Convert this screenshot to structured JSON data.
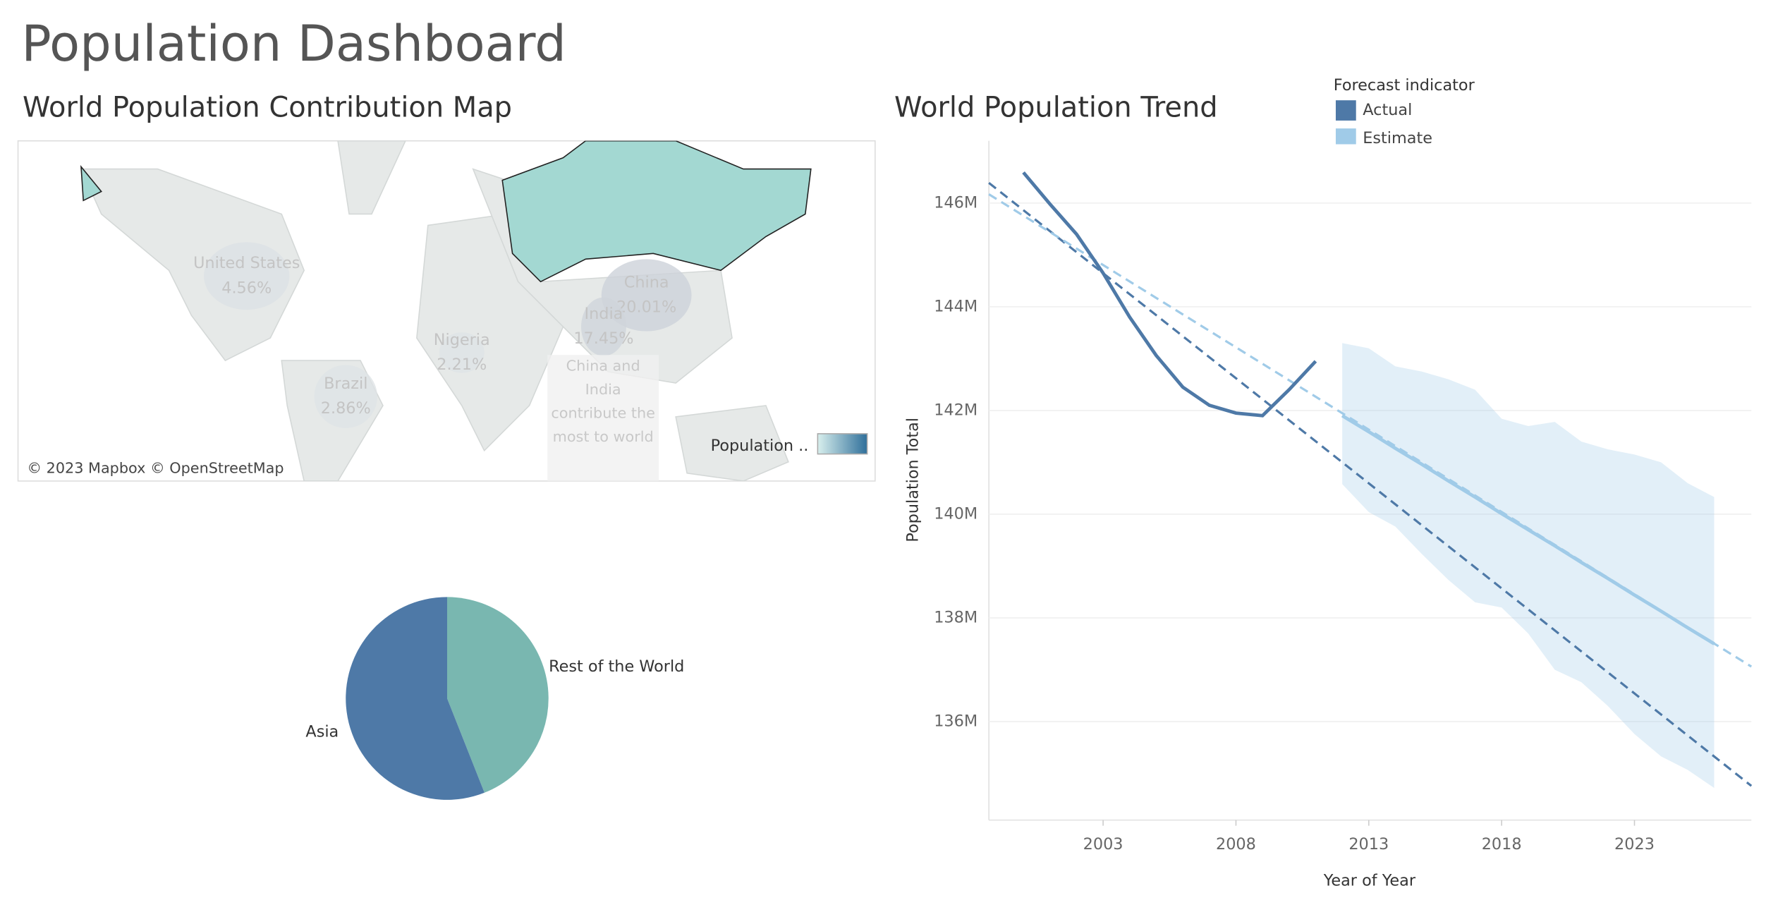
{
  "title": "Population Dashboard",
  "chart_data": [
    {
      "type": "map",
      "title": "World Population Contribution Map",
      "regions": [
        "United States",
        "China",
        "India",
        "Nigeria",
        "Brazil"
      ],
      "values": [
        4.56,
        20.01,
        17.45,
        2.21,
        2.86
      ],
      "value_labels": [
        "4.56%",
        "20.01%",
        "17.45%",
        "2.21%",
        "2.86%"
      ],
      "annotation": "China and India contribute the most to world",
      "attribution": "© 2023 Mapbox © OpenStreetMap",
      "legend_title": "Population ..",
      "highlight_color": "#a3d8d2"
    },
    {
      "type": "pie",
      "categories": [
        "Asia",
        "Rest of the World"
      ],
      "values": [
        56,
        44
      ],
      "colors": [
        "#4e79a7",
        "#79b7b0"
      ]
    },
    {
      "type": "line",
      "title": "World Population Trend",
      "x_label": "Year of Year",
      "y_label": "Population Total",
      "legend_title": "Forecast indicator",
      "xlim": [
        1998.7,
        2027.4
      ],
      "xticks": [
        2003,
        2008,
        2013,
        2018,
        2023
      ],
      "ylim": [
        134.1,
        147.2
      ],
      "yticks": [
        {
          "value": 136,
          "label": "136M"
        },
        {
          "value": 138,
          "label": "138M"
        },
        {
          "value": 140,
          "label": "140M"
        },
        {
          "value": 142,
          "label": "142M"
        },
        {
          "value": 144,
          "label": "144M"
        },
        {
          "value": 146,
          "label": "146M"
        }
      ],
      "grid": true,
      "series": [
        {
          "name": "Actual",
          "color": "#4e79a7",
          "x": [
            2000,
            2001,
            2002,
            2003,
            2004,
            2005,
            2006,
            2007,
            2008,
            2009,
            2010,
            2011
          ],
          "values": [
            146.59,
            145.98,
            145.4,
            144.65,
            143.8,
            143.06,
            142.45,
            142.1,
            141.95,
            141.9,
            142.4,
            142.95
          ]
        },
        {
          "name": "Estimate",
          "color": "#a0cbe8",
          "x": [
            2012,
            2013,
            2014,
            2015,
            2016,
            2017,
            2018,
            2019,
            2020,
            2021,
            2022,
            2023,
            2024,
            2025,
            2026
          ],
          "values": [
            141.9,
            141.59,
            141.27,
            140.96,
            140.64,
            140.33,
            140.01,
            139.7,
            139.39,
            139.07,
            138.76,
            138.44,
            138.13,
            137.81,
            137.5
          ],
          "upper": [
            143.3,
            143.2,
            142.85,
            142.75,
            142.6,
            142.4,
            141.84,
            141.7,
            141.78,
            141.4,
            141.25,
            141.15,
            141.0,
            140.6,
            140.33
          ],
          "lower": [
            140.58,
            140.04,
            139.76,
            139.23,
            138.73,
            138.3,
            138.2,
            137.7,
            137.0,
            136.76,
            136.3,
            135.76,
            135.33,
            135.07,
            134.72
          ]
        }
      ],
      "trend_lines": [
        {
          "color": "#4e79a7",
          "x": [
            1998.7,
            2027.4
          ],
          "values": [
            146.39,
            134.76
          ]
        },
        {
          "color": "#a0cbe8",
          "x": [
            1998.7,
            2027.4
          ],
          "values": [
            146.17,
            137.06
          ]
        }
      ]
    }
  ]
}
